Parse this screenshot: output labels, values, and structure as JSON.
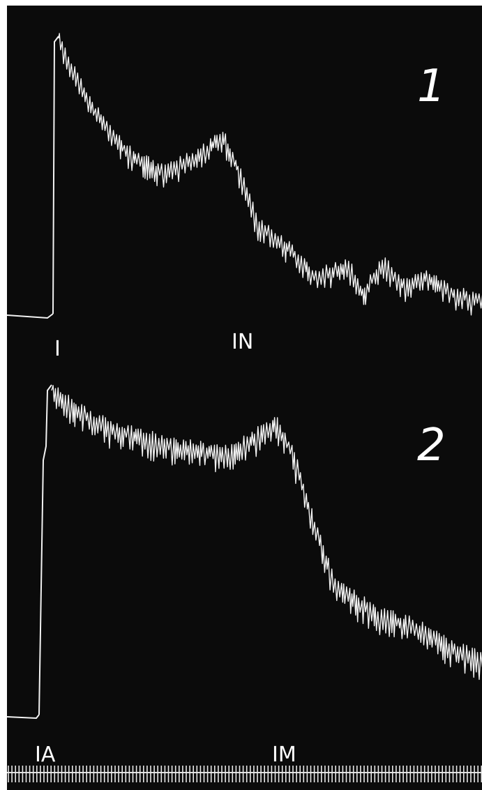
{
  "panels": [
    {
      "number": "1",
      "markers": [
        "I",
        "IN"
      ]
    },
    {
      "number": "2",
      "markers": [
        "IA",
        "IM"
      ]
    }
  ]
}
